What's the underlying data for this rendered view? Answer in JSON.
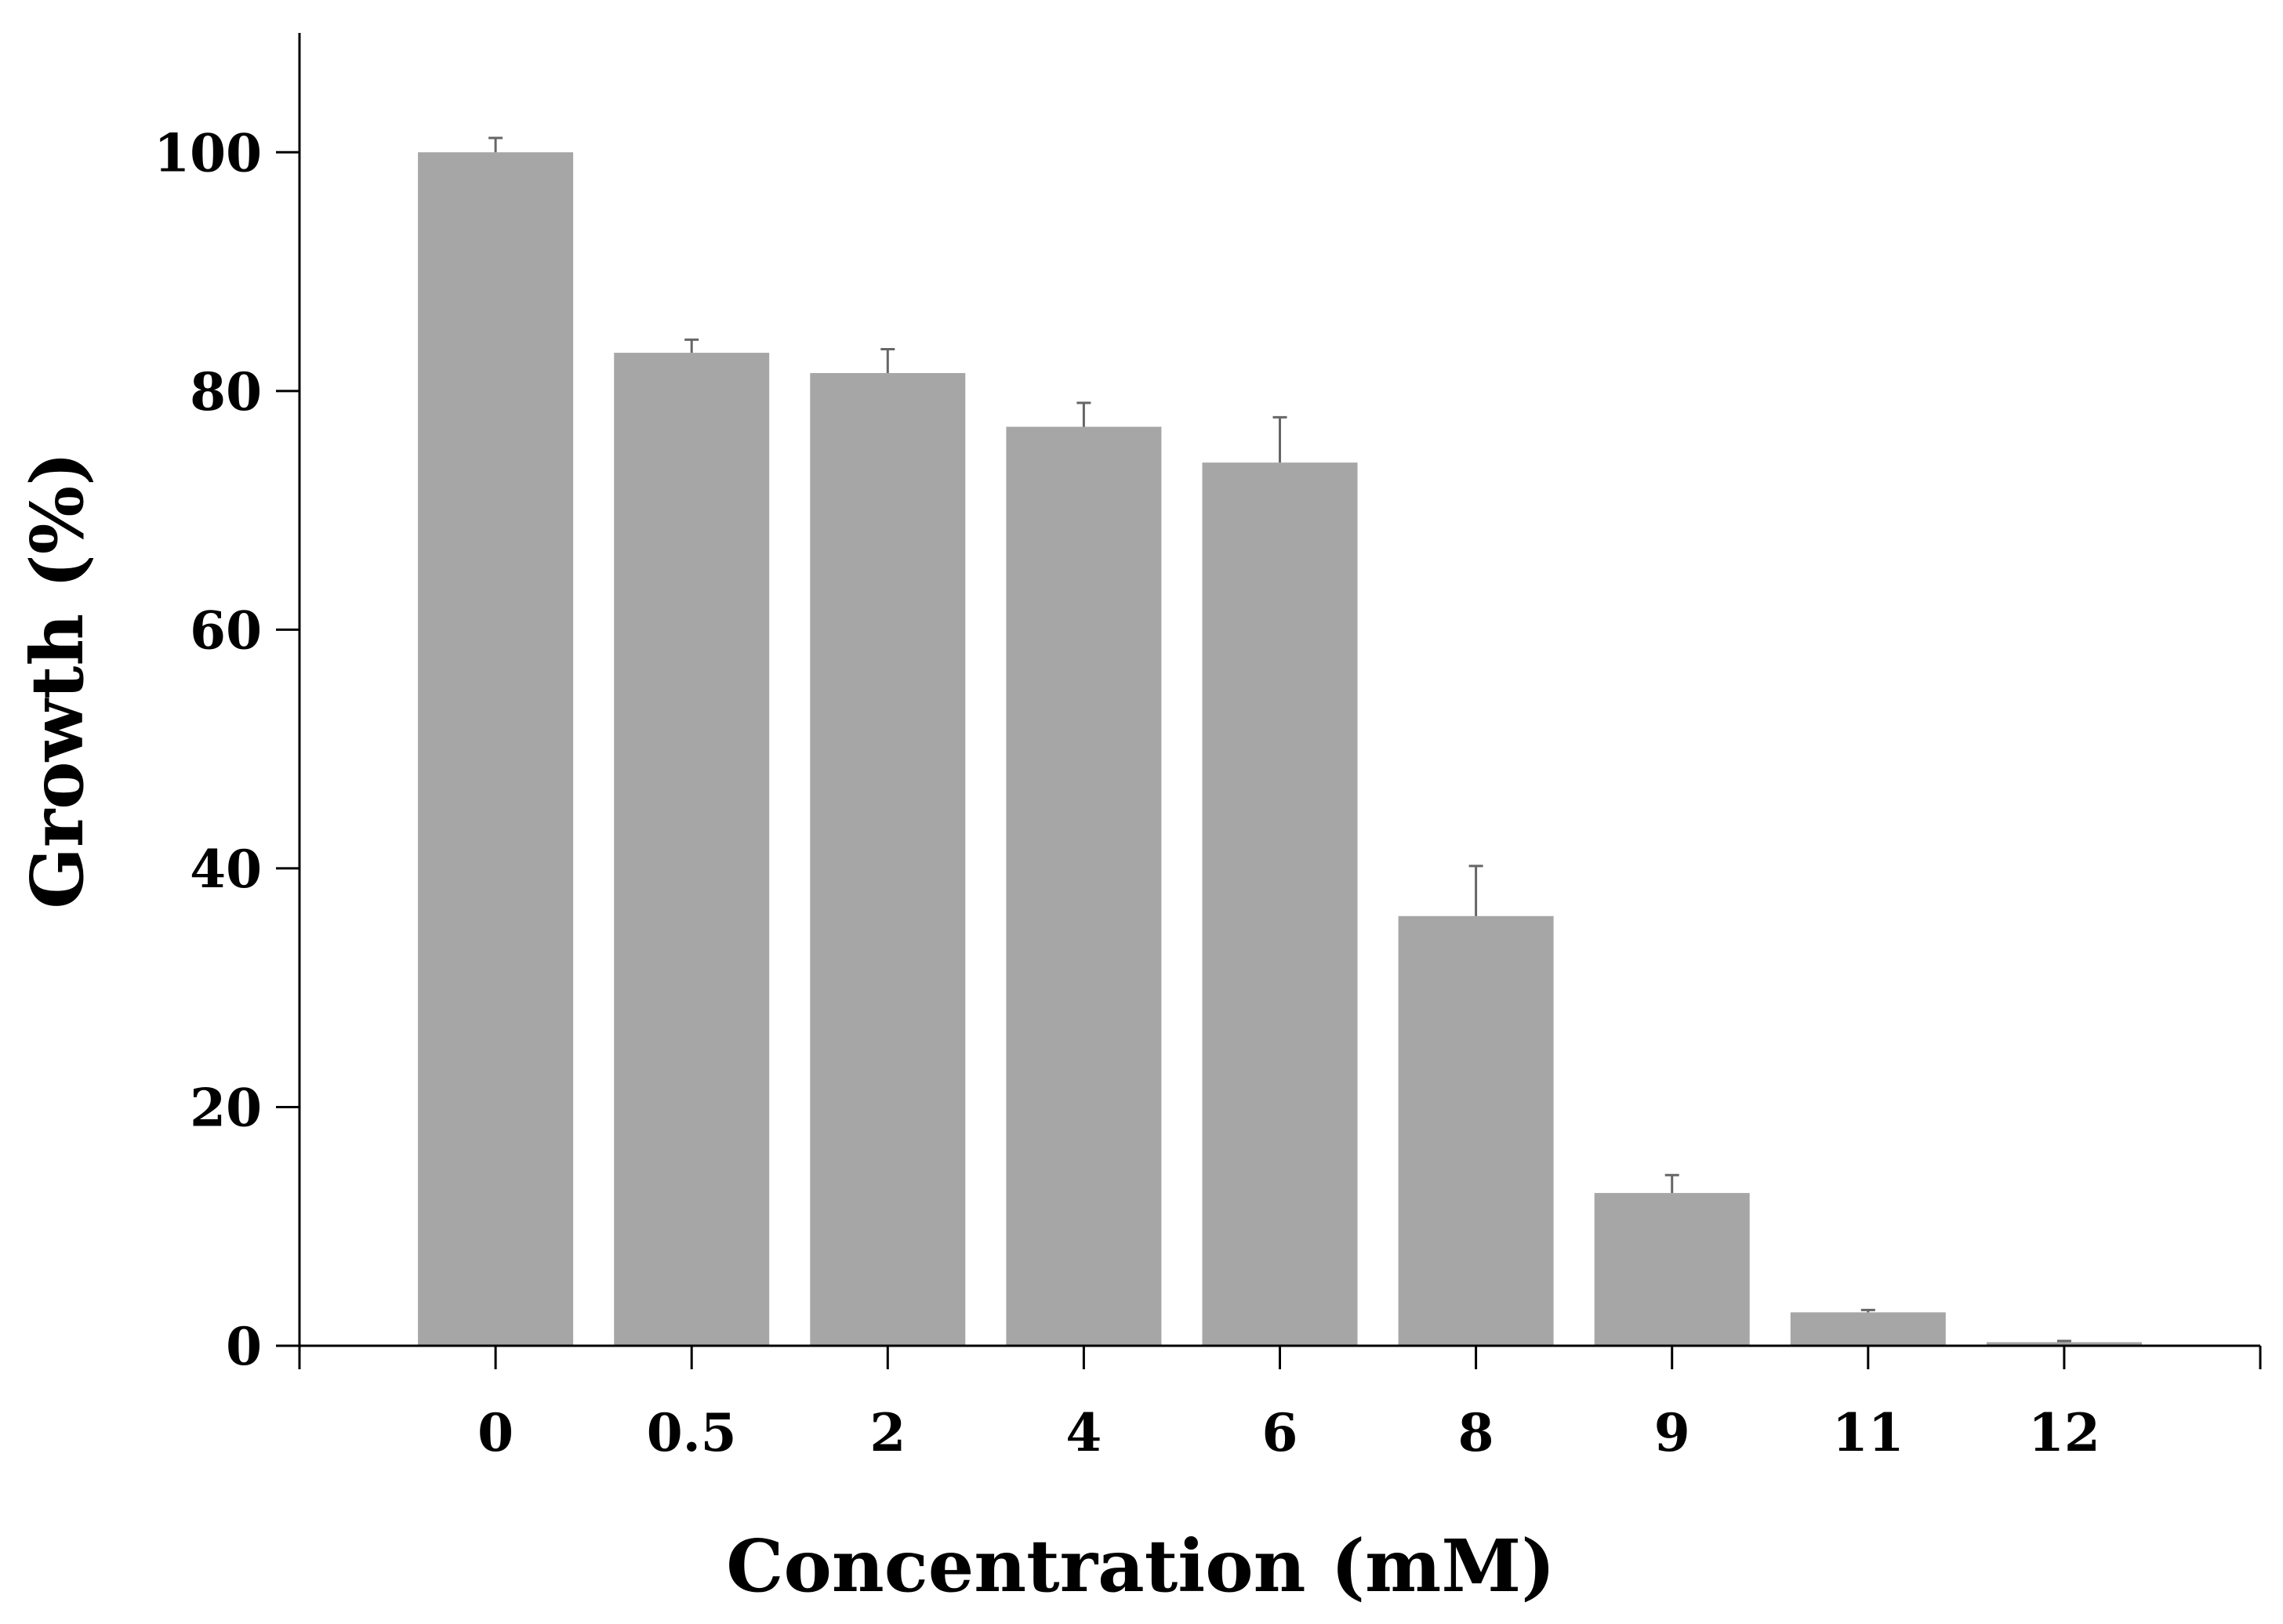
{
  "chart_data": {
    "type": "bar",
    "title": "",
    "xlabel": "Concentration (mM)",
    "ylabel": "Growth (%)",
    "categories": [
      "0",
      "0.5",
      "2",
      "4",
      "6",
      "8",
      "9",
      "11",
      "12"
    ],
    "values": [
      100,
      83.2,
      81.5,
      77.0,
      74.0,
      36.0,
      12.8,
      2.8,
      0.3
    ],
    "errors": [
      1.2,
      1.1,
      2.0,
      2.0,
      3.8,
      4.2,
      1.5,
      0.2,
      0.1
    ],
    "ylim": [
      0,
      110
    ],
    "yticks": [
      0,
      20,
      40,
      60,
      80,
      100
    ],
    "grid": false,
    "legend": false,
    "colors": {
      "bar": "#a6a6a6",
      "axis": "#000000",
      "error_bar": "#666666"
    }
  }
}
